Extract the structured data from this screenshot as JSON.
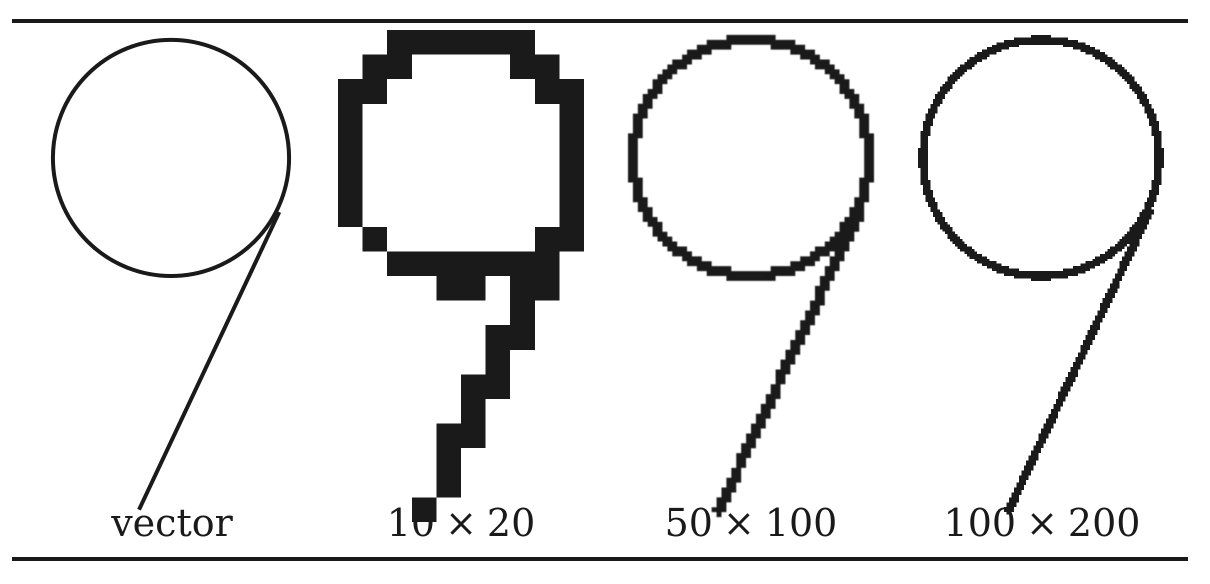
{
  "figure": {
    "panels": [
      {
        "kind": "vector",
        "label": "vector"
      },
      {
        "kind": "raster",
        "label_w": "10",
        "label_h": "20",
        "cols": 10,
        "rows": 20,
        "smooth": false
      },
      {
        "kind": "raster",
        "label_w": "50",
        "label_h": "100",
        "cols": 50,
        "rows": 100,
        "smooth": true
      },
      {
        "kind": "raster",
        "label_w": "100",
        "label_h": "200",
        "cols": 100,
        "rows": 200,
        "smooth": false
      }
    ],
    "times_symbol": "×",
    "ink_color": "#1a1a1a"
  }
}
